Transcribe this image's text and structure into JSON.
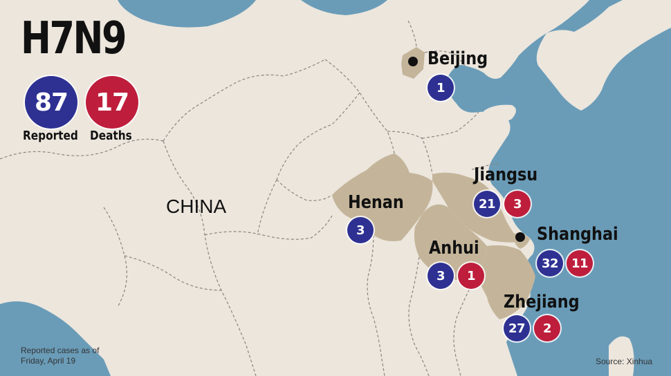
{
  "title": "H7N9",
  "summary": {
    "reported": "87",
    "reported_label": "Reported",
    "deaths": "17",
    "deaths_label": "Deaths"
  },
  "country_label": "CHINA",
  "regions": [
    {
      "name": "Beijing",
      "reported": "1",
      "deaths": null
    },
    {
      "name": "Henan",
      "reported": "3",
      "deaths": null
    },
    {
      "name": "Jiangsu",
      "reported": "21",
      "deaths": "3"
    },
    {
      "name": "Anhui",
      "reported": "3",
      "deaths": "1"
    },
    {
      "name": "Shanghai",
      "reported": "32",
      "deaths": "11"
    },
    {
      "name": "Zhejiang",
      "reported": "27",
      "deaths": "2"
    }
  ],
  "footnote_line1": "Reported cases as of",
  "footnote_line2": "Friday, April 19",
  "source": "Source: Xinhua",
  "colors": {
    "land": "#ece6dd",
    "water": "#6a9cb8",
    "highlight": "#c4b59a",
    "reported": "#2e3192",
    "deaths": "#be1e3c"
  }
}
